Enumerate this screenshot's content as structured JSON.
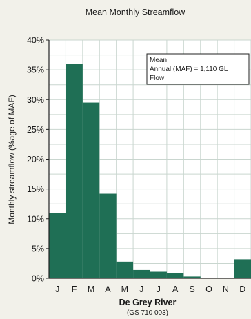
{
  "chart_data": {
    "type": "bar",
    "title": "Mean Monthly Streamflow",
    "ylabel": "Monthly streamflow (%age of MAF)",
    "xlabel": "De Grey River",
    "xlabel_sub": "(GS 710 003)",
    "categories": [
      "J",
      "F",
      "M",
      "A",
      "M",
      "J",
      "J",
      "A",
      "S",
      "O",
      "N",
      "D"
    ],
    "values": [
      11.0,
      36.0,
      29.5,
      14.2,
      2.8,
      1.4,
      1.1,
      0.9,
      0.3,
      0.05,
      0.05,
      3.2
    ],
    "ylim": [
      0,
      40
    ],
    "yticks": [
      "0%",
      "5%",
      "10%",
      "15%",
      "20%",
      "25%",
      "30%",
      "35%",
      "40%"
    ],
    "grid": true,
    "annotation": {
      "line1": "Mean",
      "line2": "Annual  (MAF) = 1,110 GL",
      "line3": "Flow"
    },
    "colors": {
      "bar": "#1f6f55",
      "grid": "#c9d6cf",
      "axis": "#222222",
      "background": "#ffffff"
    }
  }
}
